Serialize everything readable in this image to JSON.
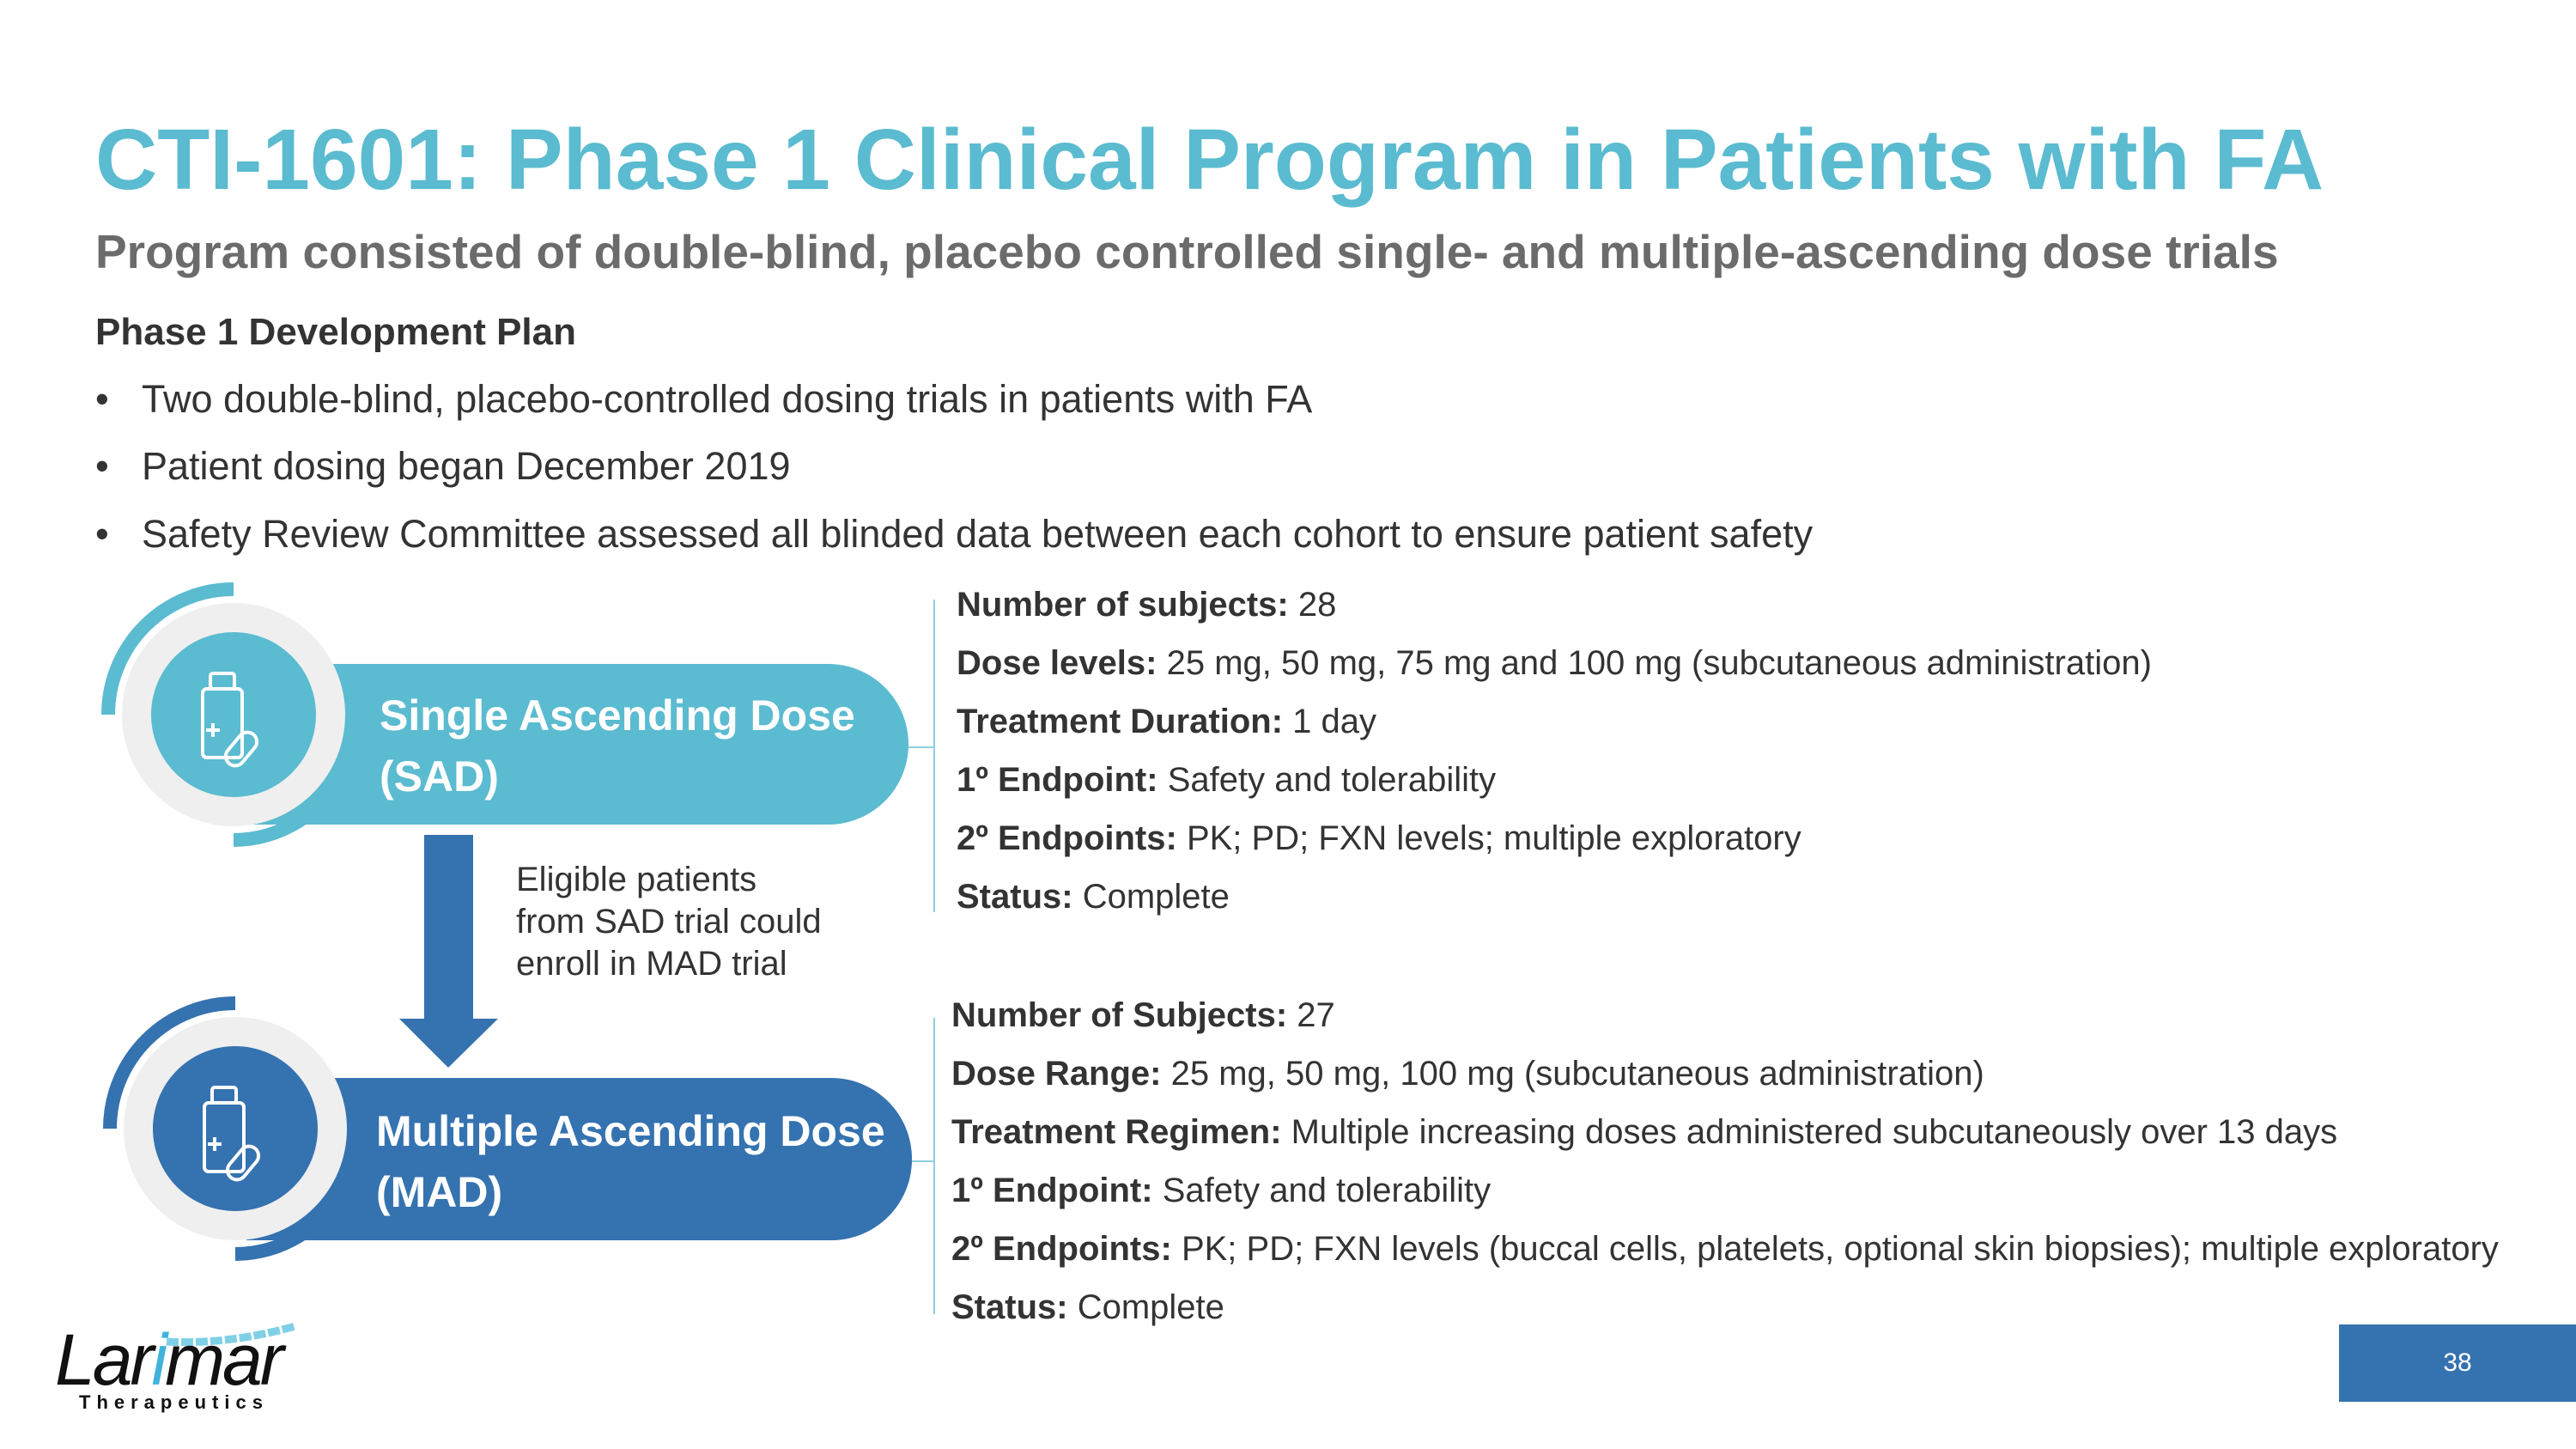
{
  "title": "CTI-1601: Phase 1 Clinical Program in Patients with FA",
  "subtitle": "Program consisted of double-blind, placebo controlled single- and multiple-ascending dose trials",
  "plan": {
    "heading": "Phase 1 Development Plan",
    "bullets": [
      "Two double-blind, placebo-controlled dosing trials in patients with FA",
      "Patient dosing began December 2019",
      "Safety Review Committee assessed all blinded data between each cohort to ensure patient safety"
    ]
  },
  "sad": {
    "line1": "Single Ascending Dose",
    "line2": "(SAD)",
    "icon": "medicine-bottle-pill-icon",
    "color": "#5BBBD0",
    "details": [
      {
        "label": "Number of subjects:",
        "value": " 28"
      },
      {
        "label": "Dose levels:",
        "value": " 25 mg, 50 mg, 75 mg and 100 mg (subcutaneous administration)"
      },
      {
        "label": "Treatment Duration:",
        "value": " 1 day"
      },
      {
        "label": "1º Endpoint:",
        "value": " Safety and tolerability"
      },
      {
        "label": "2º  Endpoints:",
        "value": " PK; PD; FXN levels; multiple exploratory"
      },
      {
        "label": "Status:",
        "value": " Complete"
      }
    ]
  },
  "transition": {
    "lines": [
      "Eligible patients",
      "from SAD trial could",
      "enroll in MAD trial"
    ],
    "icon": "arrow-down-icon"
  },
  "mad": {
    "line1": "Multiple Ascending Dose",
    "line2": "(MAD)",
    "icon": "medicine-bottle-pill-icon",
    "color": "#3572B0",
    "details": [
      {
        "label": "Number of Subjects:",
        "value": " 27"
      },
      {
        "label": "Dose Range:",
        "value": " 25 mg, 50 mg, 100 mg (subcutaneous administration)"
      },
      {
        "label": "Treatment Regimen:",
        "value": " Multiple increasing doses administered subcutaneously over 13 days"
      },
      {
        "label": "1º Endpoint:",
        "value": " Safety and tolerability"
      },
      {
        "label": "2º  Endpoints:",
        "value": " PK; PD; FXN levels (buccal cells, platelets, optional skin biopsies); multiple exploratory"
      },
      {
        "label": "Status:",
        "value": " Complete"
      }
    ]
  },
  "logo": {
    "name": "Larimar",
    "tagline": "Therapeutics"
  },
  "page_number": "38"
}
